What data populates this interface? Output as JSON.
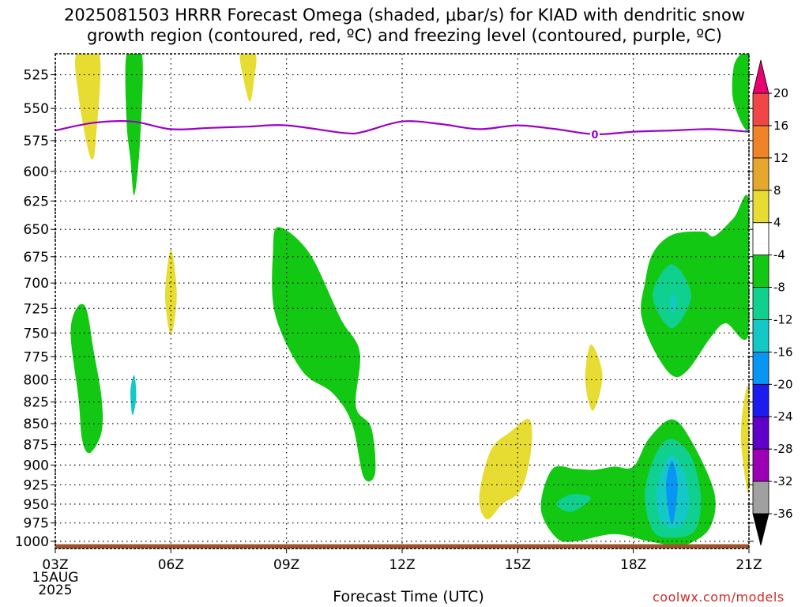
{
  "title": {
    "line1": "2025081503 HRRR Forecast Omega (shaded, μbar/s) for KIAD with dendritic snow",
    "line2": "growth region (contoured, red, ºC) and freezing level (contoured, purple, ºC)"
  },
  "credit": "coolwx.com/models",
  "chart_data": {
    "type": "heatmap",
    "title": "2025081503 HRRR Forecast Omega (shaded, μbar/s) for KIAD with dendritic snow growth region (contoured, red, ºC) and freezing level (contoured, purple, ºC)",
    "xlabel": "Forecast Time (UTC)",
    "ylabel": "",
    "x_ticks": [
      "03Z",
      "06Z",
      "09Z",
      "12Z",
      "15Z",
      "18Z",
      "21Z"
    ],
    "x_tick_hours": [
      3,
      6,
      9,
      12,
      15,
      18,
      21
    ],
    "x_first_sub": [
      "15AUG",
      "2025"
    ],
    "xlim": [
      3,
      21
    ],
    "y_ticks": [
      525,
      550,
      575,
      600,
      625,
      650,
      675,
      700,
      725,
      750,
      775,
      800,
      825,
      850,
      875,
      900,
      925,
      950,
      975,
      1000
    ],
    "ylim": [
      510,
      1010
    ],
    "y_scale": "log-pressure (inverted)",
    "grid": true,
    "colorbar": {
      "levels": [
        -36,
        -32,
        -28,
        -24,
        -20,
        -16,
        -12,
        -8,
        -4,
        4,
        8,
        12,
        16,
        20
      ],
      "labels": [
        "20",
        "16",
        "12",
        "8",
        "4",
        "-4",
        "-8",
        "-12",
        "-16",
        "-20",
        "-24",
        "-28",
        "-32",
        "-36"
      ],
      "colors": [
        "#000000",
        "#a0a0a0",
        "#9b00b4",
        "#6000c8",
        "#1c1cf0",
        "#0896f5",
        "#14c8c8",
        "#10d090",
        "#12c812",
        "#ffffff",
        "#e6dc32",
        "#e6a82c",
        "#f08228",
        "#f04646",
        "#e8006e"
      ]
    },
    "freezing_level": {
      "label": "0",
      "color": "#9b00c8",
      "points": [
        [
          3.0,
          567
        ],
        [
          4.0,
          561
        ],
        [
          5.0,
          560
        ],
        [
          6.0,
          566
        ],
        [
          7.0,
          565
        ],
        [
          8.0,
          564
        ],
        [
          9.0,
          563
        ],
        [
          10.5,
          569
        ],
        [
          11.0,
          568
        ],
        [
          12.0,
          560
        ],
        [
          13.0,
          562
        ],
        [
          14.0,
          566
        ],
        [
          15.0,
          563
        ],
        [
          16.0,
          566
        ],
        [
          17.0,
          570
        ],
        [
          18.0,
          568
        ],
        [
          19.0,
          567
        ],
        [
          20.0,
          566
        ],
        [
          21.0,
          568
        ]
      ]
    },
    "ground": {
      "color": "#a0522d"
    },
    "omega_regions": [
      {
        "value": 4,
        "color": "#e6dc32",
        "points": [
          [
            3.55,
            510
          ],
          [
            4.15,
            510
          ],
          [
            4.05,
            575
          ],
          [
            3.95,
            590
          ],
          [
            3.8,
            575
          ],
          [
            3.6,
            540
          ]
        ]
      },
      {
        "value": 4,
        "color": "#e6dc32",
        "points": [
          [
            7.8,
            510
          ],
          [
            8.2,
            510
          ],
          [
            8.15,
            530
          ],
          [
            8.05,
            545
          ],
          [
            7.9,
            530
          ]
        ]
      },
      {
        "value": 4,
        "color": "#e6dc32",
        "points": [
          [
            6.0,
            668
          ],
          [
            6.15,
            712
          ],
          [
            6.0,
            752
          ],
          [
            5.85,
            712
          ]
        ]
      },
      {
        "value": 4,
        "color": "#e6dc32",
        "points": [
          [
            16.9,
            762
          ],
          [
            17.2,
            795
          ],
          [
            16.95,
            835
          ],
          [
            16.75,
            800
          ]
        ]
      },
      {
        "value": 4,
        "color": "#e6dc32",
        "points": [
          [
            21.0,
            812
          ],
          [
            21.0,
            935
          ],
          [
            20.8,
            875
          ],
          [
            20.85,
            830
          ]
        ]
      },
      {
        "value": 4,
        "color": "#e6dc32",
        "points": [
          [
            14.0,
            940
          ],
          [
            14.3,
            882
          ],
          [
            14.8,
            860
          ],
          [
            15.3,
            845
          ],
          [
            15.35,
            880
          ],
          [
            15.1,
            930
          ],
          [
            14.6,
            950
          ],
          [
            14.2,
            970
          ]
        ]
      },
      {
        "value": -4,
        "color": "#12c812",
        "points": [
          [
            4.85,
            510
          ],
          [
            5.25,
            510
          ],
          [
            5.2,
            575
          ],
          [
            5.05,
            620
          ],
          [
            4.95,
            590
          ],
          [
            4.85,
            560
          ]
        ]
      },
      {
        "value": -4,
        "color": "#12c812",
        "points": [
          [
            20.8,
            510
          ],
          [
            21.0,
            510
          ],
          [
            21.0,
            566
          ],
          [
            20.6,
            545
          ],
          [
            20.6,
            520
          ]
        ]
      },
      {
        "value": -4,
        "color": "#12c812",
        "points": [
          [
            3.4,
            752
          ],
          [
            3.55,
            725
          ],
          [
            3.8,
            725
          ],
          [
            4.0,
            770
          ],
          [
            4.2,
            820
          ],
          [
            4.2,
            860
          ],
          [
            3.9,
            885
          ],
          [
            3.7,
            870
          ],
          [
            3.6,
            820
          ]
        ]
      },
      {
        "value": -4,
        "color": "#12c812",
        "points": [
          [
            8.65,
            670
          ],
          [
            8.8,
            648
          ],
          [
            9.6,
            672
          ],
          [
            10.4,
            735
          ],
          [
            10.9,
            770
          ],
          [
            10.8,
            830
          ],
          [
            11.2,
            855
          ],
          [
            11.3,
            910
          ],
          [
            11.0,
            915
          ],
          [
            10.7,
            850
          ],
          [
            10.2,
            815
          ],
          [
            9.4,
            790
          ],
          [
            8.7,
            730
          ]
        ]
      },
      {
        "value": -4,
        "color": "#12c812",
        "points": [
          [
            18.3,
            700
          ],
          [
            18.5,
            672
          ],
          [
            19.0,
            655
          ],
          [
            19.8,
            652
          ],
          [
            20.1,
            656
          ],
          [
            20.6,
            640
          ],
          [
            21.0,
            625
          ],
          [
            21.0,
            750
          ],
          [
            20.4,
            740
          ],
          [
            20.0,
            755
          ],
          [
            19.4,
            790
          ],
          [
            19.0,
            795
          ],
          [
            18.5,
            765
          ],
          [
            18.2,
            730
          ]
        ]
      },
      {
        "value": -4,
        "color": "#12c812",
        "points": [
          [
            15.6,
            955
          ],
          [
            15.9,
            905
          ],
          [
            16.5,
            905
          ],
          [
            17.0,
            906
          ],
          [
            17.5,
            902
          ],
          [
            18.0,
            902
          ],
          [
            18.4,
            868
          ],
          [
            19.0,
            845
          ],
          [
            19.5,
            870
          ],
          [
            20.1,
            935
          ],
          [
            20.0,
            980
          ],
          [
            19.5,
            1002
          ],
          [
            19.0,
            1005
          ],
          [
            18.4,
            1000
          ],
          [
            17.5,
            990
          ],
          [
            16.5,
            1000
          ],
          [
            16.0,
            995
          ]
        ]
      },
      {
        "value": -8,
        "color": "#10d090",
        "points": [
          [
            18.5,
            712
          ],
          [
            19.0,
            682
          ],
          [
            19.5,
            712
          ],
          [
            19.0,
            745
          ]
        ]
      },
      {
        "value": -8,
        "color": "#10d090",
        "points": [
          [
            16.0,
            950
          ],
          [
            16.4,
            937
          ],
          [
            16.9,
            942
          ],
          [
            16.4,
            960
          ]
        ]
      },
      {
        "value": -8,
        "color": "#10d090",
        "points": [
          [
            18.3,
            935
          ],
          [
            18.6,
            885
          ],
          [
            19.0,
            868
          ],
          [
            19.5,
            890
          ],
          [
            19.75,
            940
          ],
          [
            19.6,
            985
          ],
          [
            19.0,
            995
          ],
          [
            18.5,
            985
          ]
        ]
      },
      {
        "value": -12,
        "color": "#14c8c8",
        "points": [
          [
            18.6,
            935
          ],
          [
            18.8,
            900
          ],
          [
            19.0,
            888
          ],
          [
            19.3,
            905
          ],
          [
            19.45,
            945
          ],
          [
            19.3,
            975
          ],
          [
            19.0,
            982
          ],
          [
            18.7,
            970
          ]
        ]
      },
      {
        "value": -16,
        "color": "#0896f5",
        "points": [
          [
            18.85,
            925
          ],
          [
            19.0,
            895
          ],
          [
            19.15,
            925
          ],
          [
            19.05,
            970
          ],
          [
            18.95,
            970
          ]
        ]
      },
      {
        "value": -12,
        "color": "#14c8c8",
        "points": [
          [
            4.95,
            812
          ],
          [
            5.05,
            795
          ],
          [
            5.1,
            820
          ],
          [
            5.0,
            840
          ]
        ]
      },
      {
        "value": -12,
        "color": "#14c8c8",
        "points": [
          [
            18.95,
            718
          ],
          [
            19.05,
            710
          ],
          [
            19.1,
            722
          ],
          [
            19.0,
            730
          ]
        ]
      }
    ]
  }
}
